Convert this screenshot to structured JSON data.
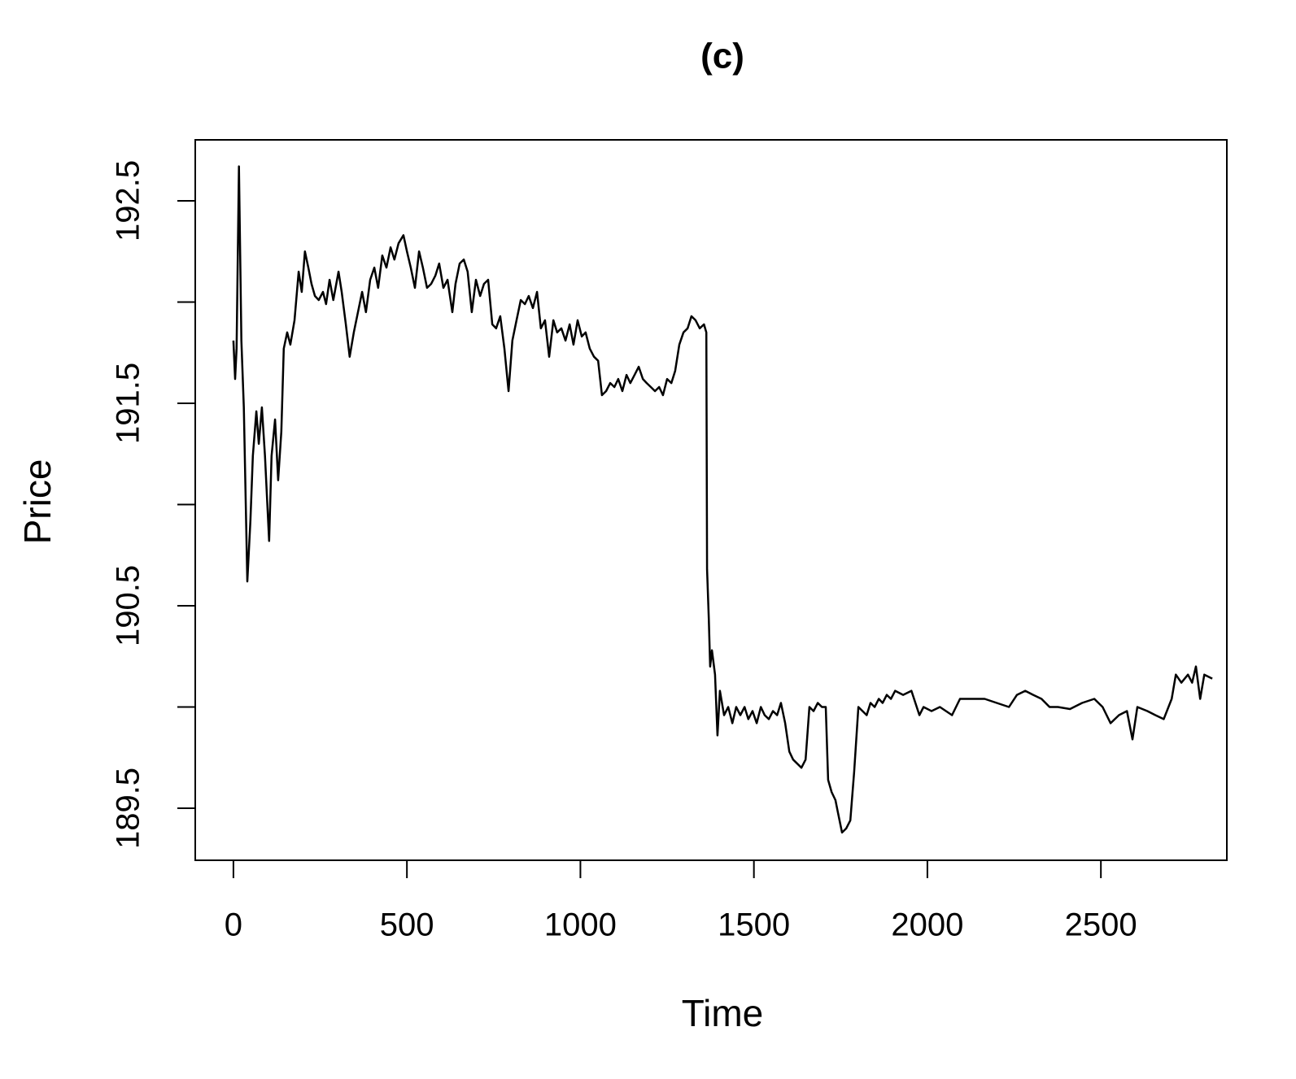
{
  "chart_data": {
    "type": "line",
    "title": "(c)",
    "xlabel": "Time",
    "ylabel": "Price",
    "color": "#000000",
    "x": [
      0,
      5,
      9,
      16,
      23,
      30,
      40,
      49,
      56,
      66,
      73,
      82,
      91,
      103,
      110,
      120,
      129,
      138,
      145,
      155,
      164,
      176,
      188,
      197,
      206,
      216,
      225,
      235,
      246,
      258,
      267,
      277,
      288,
      303,
      312,
      324,
      335,
      347,
      359,
      371,
      382,
      394,
      406,
      417,
      429,
      441,
      453,
      464,
      476,
      490,
      500,
      511,
      523,
      535,
      546,
      558,
      570,
      582,
      593,
      605,
      617,
      631,
      640,
      652,
      664,
      675,
      687,
      699,
      711,
      722,
      734,
      746,
      757,
      769,
      781,
      793,
      804,
      816,
      828,
      840,
      851,
      863,
      875,
      886,
      898,
      910,
      922,
      933,
      945,
      957,
      969,
      980,
      992,
      1004,
      1015,
      1027,
      1039,
      1051,
      1062,
      1074,
      1086,
      1098,
      1109,
      1121,
      1133,
      1144,
      1156,
      1168,
      1180,
      1191,
      1203,
      1215,
      1227,
      1238,
      1250,
      1262,
      1273,
      1285,
      1297,
      1309,
      1320,
      1332,
      1344,
      1356,
      1363,
      1365,
      1370,
      1374,
      1379,
      1388,
      1395,
      1402,
      1414,
      1426,
      1438,
      1449,
      1461,
      1473,
      1484,
      1496,
      1508,
      1520,
      1531,
      1543,
      1555,
      1567,
      1578,
      1590,
      1602,
      1613,
      1625,
      1637,
      1649,
      1660,
      1672,
      1684,
      1696,
      1707,
      1714,
      1724,
      1735,
      1742,
      1754,
      1766,
      1778,
      1789,
      1801,
      1813,
      1825,
      1836,
      1848,
      1860,
      1871,
      1883,
      1895,
      1907,
      1930,
      1954,
      1977,
      1989,
      2012,
      2036,
      2071,
      2094,
      2129,
      2165,
      2200,
      2235,
      2258,
      2282,
      2305,
      2329,
      2352,
      2376,
      2411,
      2446,
      2481,
      2505,
      2528,
      2552,
      2575,
      2591,
      2605,
      2634,
      2657,
      2681,
      2704,
      2716,
      2732,
      2751,
      2763,
      2774,
      2786,
      2798,
      2821
    ],
    "values": [
      191.81,
      191.62,
      191.77,
      192.67,
      191.81,
      191.48,
      190.62,
      190.92,
      191.24,
      191.46,
      191.3,
      191.48,
      191.24,
      190.82,
      191.24,
      191.42,
      191.12,
      191.36,
      191.77,
      191.85,
      191.79,
      191.91,
      192.15,
      192.05,
      192.25,
      192.17,
      192.09,
      192.03,
      192.01,
      192.05,
      191.99,
      192.11,
      192.01,
      192.15,
      192.05,
      191.89,
      191.73,
      191.85,
      191.95,
      192.05,
      191.95,
      192.11,
      192.17,
      192.07,
      192.23,
      192.17,
      192.27,
      192.21,
      192.29,
      192.33,
      192.25,
      192.17,
      192.07,
      192.25,
      192.17,
      192.07,
      192.09,
      192.13,
      192.19,
      192.07,
      192.11,
      191.95,
      192.09,
      192.19,
      192.21,
      192.15,
      191.95,
      192.11,
      192.03,
      192.09,
      192.11,
      191.89,
      191.87,
      191.93,
      191.77,
      191.56,
      191.81,
      191.91,
      192.01,
      191.99,
      192.03,
      191.97,
      192.05,
      191.87,
      191.91,
      191.73,
      191.91,
      191.85,
      191.87,
      191.81,
      191.89,
      191.79,
      191.91,
      191.83,
      191.85,
      191.77,
      191.73,
      191.71,
      191.54,
      191.56,
      191.6,
      191.58,
      191.62,
      191.56,
      191.64,
      191.6,
      191.64,
      191.68,
      191.62,
      191.6,
      191.58,
      191.56,
      191.58,
      191.54,
      191.62,
      191.6,
      191.66,
      191.79,
      191.85,
      191.87,
      191.93,
      191.91,
      191.87,
      191.89,
      191.85,
      190.68,
      190.44,
      190.2,
      190.28,
      190.16,
      189.86,
      190.08,
      189.96,
      190.0,
      189.92,
      190.0,
      189.96,
      190.0,
      189.94,
      189.98,
      189.92,
      190.0,
      189.96,
      189.94,
      189.98,
      189.96,
      190.02,
      189.92,
      189.78,
      189.74,
      189.72,
      189.7,
      189.74,
      190.0,
      189.98,
      190.02,
      190.0,
      190.0,
      189.64,
      189.58,
      189.54,
      189.48,
      189.38,
      189.4,
      189.44,
      189.68,
      190.0,
      189.98,
      189.96,
      190.02,
      190.0,
      190.04,
      190.02,
      190.06,
      190.04,
      190.08,
      190.06,
      190.08,
      189.96,
      190.0,
      189.98,
      190.0,
      189.96,
      190.04,
      190.04,
      190.04,
      190.02,
      190.0,
      190.06,
      190.08,
      190.06,
      190.04,
      190.0,
      190.0,
      189.99,
      190.02,
      190.04,
      190.0,
      189.92,
      189.96,
      189.98,
      189.84,
      190.0,
      189.98,
      189.96,
      189.94,
      190.04,
      190.16,
      190.12,
      190.16,
      190.12,
      190.2,
      190.04,
      190.16,
      190.14
    ],
    "xlim": [
      -110,
      2863
    ],
    "xticks": [
      0,
      500,
      1000,
      1500,
      2000,
      2500
    ],
    "ylim": [
      189.243,
      192.801
    ],
    "yticks": [
      189.5,
      {
        "value": 190,
        "label": null
      },
      190.5,
      {
        "value": 191,
        "label": null
      },
      191.5,
      {
        "value": 192,
        "label": null
      },
      192.5
    ]
  }
}
